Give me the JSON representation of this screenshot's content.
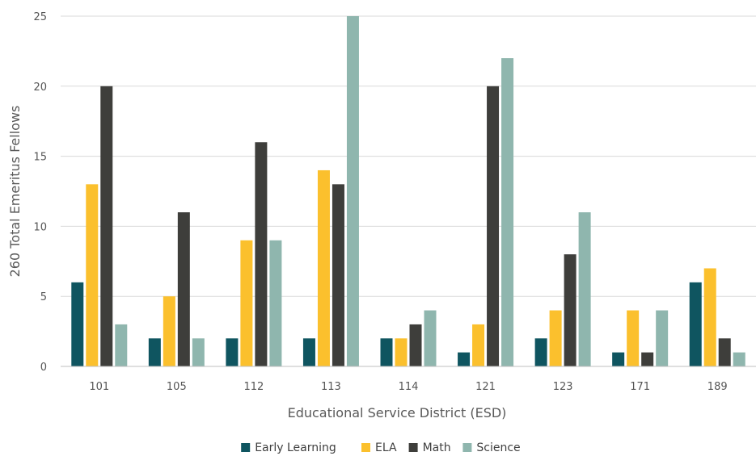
{
  "chart_data": {
    "type": "bar",
    "xlabel": "Educational Service District (ESD)",
    "ylabel": "260 Total Emeritus Fellows",
    "categories": [
      "101",
      "105",
      "112",
      "113",
      "114",
      "121",
      "123",
      "171",
      "189"
    ],
    "ylim": [
      0,
      25
    ],
    "yticks": [
      0,
      5,
      10,
      15,
      20,
      25
    ],
    "grid": true,
    "legend_position": "bottom",
    "series": [
      {
        "name": "Early Learning",
        "color": "#0f5560",
        "values": [
          6,
          2,
          2,
          2,
          2,
          1,
          2,
          1,
          6
        ]
      },
      {
        "name": "ELA",
        "color": "#fbc02d",
        "values": [
          13,
          5,
          9,
          14,
          2,
          3,
          4,
          4,
          7
        ]
      },
      {
        "name": "Math",
        "color": "#3e3e3b",
        "values": [
          20,
          11,
          16,
          13,
          3,
          20,
          8,
          1,
          2
        ]
      },
      {
        "name": "Science",
        "color": "#8fb6ae",
        "values": [
          3,
          2,
          9,
          25,
          4,
          22,
          11,
          4,
          1
        ]
      }
    ]
  }
}
